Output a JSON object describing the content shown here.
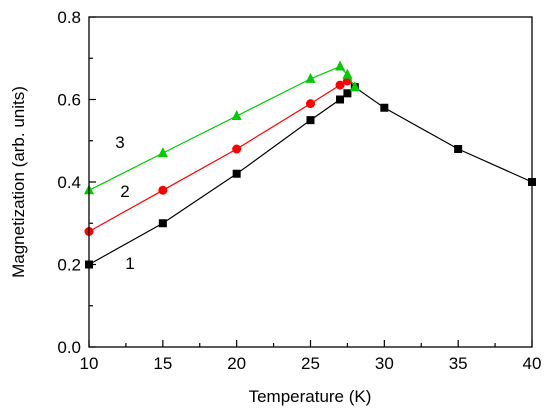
{
  "chart_data": {
    "type": "line",
    "title": "",
    "xlabel": "Temperature (K)",
    "ylabel": "Magnetization (arb. units)",
    "xlim": [
      10,
      40
    ],
    "ylim": [
      0.0,
      0.8
    ],
    "xticks": [
      10,
      15,
      20,
      25,
      30,
      35,
      40
    ],
    "yticks": [
      0.0,
      0.2,
      0.4,
      0.6,
      0.8
    ],
    "xtick_labels": [
      "10",
      "15",
      "20",
      "25",
      "30",
      "35",
      "40"
    ],
    "ytick_labels": [
      "0.0",
      "0.2",
      "0.4",
      "0.6",
      "0.8"
    ],
    "grid": false,
    "legend": "none",
    "series": [
      {
        "label": "1",
        "marker": "square",
        "color": "#000000",
        "x": [
          10,
          15,
          20,
          25,
          27,
          27.5,
          28,
          30,
          35,
          40
        ],
        "y": [
          0.2,
          0.3,
          0.42,
          0.55,
          0.6,
          0.615,
          0.63,
          0.58,
          0.48,
          0.4
        ]
      },
      {
        "label": "2",
        "marker": "circle",
        "color": "#ff0000",
        "x": [
          10,
          15,
          20,
          25,
          27,
          27.5
        ],
        "y": [
          0.28,
          0.38,
          0.48,
          0.59,
          0.635,
          0.645
        ]
      },
      {
        "label": "3",
        "marker": "triangle",
        "color": "#00cc00",
        "x": [
          10,
          15,
          20,
          25,
          27,
          27.5,
          28
        ],
        "y": [
          0.38,
          0.47,
          0.56,
          0.65,
          0.68,
          0.66,
          0.63
        ]
      }
    ]
  }
}
